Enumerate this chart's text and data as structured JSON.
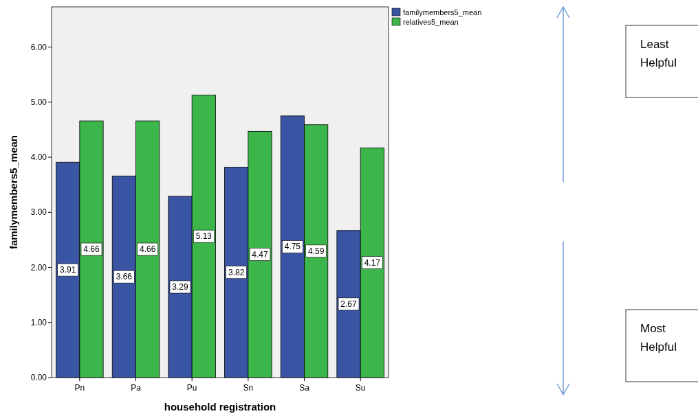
{
  "chart_data": {
    "type": "bar",
    "xlabel": "household registration",
    "ylabel": "familymembers5_mean",
    "categories": [
      "Pn",
      "Pa",
      "Pu",
      "Sn",
      "Sa",
      "Su"
    ],
    "series": [
      {
        "name": "familymembers5_mean",
        "color": "#3b55a5",
        "values": [
          3.91,
          3.66,
          3.29,
          3.82,
          4.75,
          2.67
        ]
      },
      {
        "name": "relatives5_mean",
        "color": "#3cb54a",
        "values": [
          4.66,
          4.66,
          5.13,
          4.47,
          4.59,
          4.17
        ]
      }
    ],
    "ylim": [
      0,
      6.73
    ],
    "yticks": [
      {
        "value": 0,
        "label": "0.00"
      },
      {
        "value": 1,
        "label": "1.00"
      },
      {
        "value": 2,
        "label": "2.00"
      },
      {
        "value": 3,
        "label": "3.00"
      },
      {
        "value": 4,
        "label": "4.00"
      },
      {
        "value": 5,
        "label": "5.00"
      },
      {
        "value": 6,
        "label": "6.00"
      }
    ],
    "data_labels": true,
    "legend": "top right",
    "grid": false,
    "annotations": [
      "Least Helpful",
      "Most Helpful"
    ]
  }
}
